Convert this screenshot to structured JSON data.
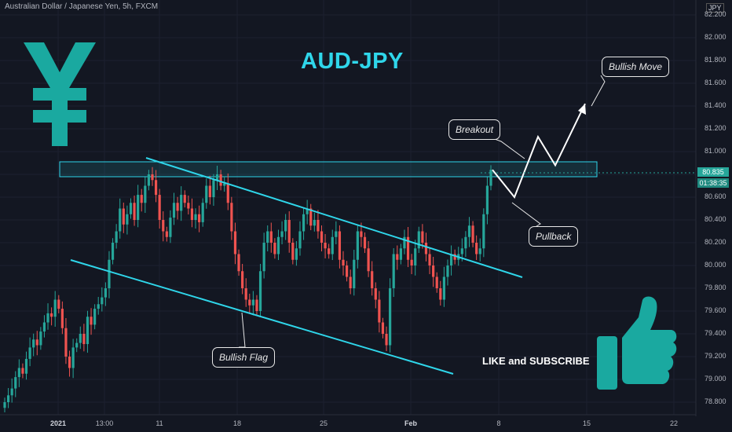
{
  "header": {
    "symbol_line": "Australian Dollar / Japanese Yen, 5h, FXCM"
  },
  "title": "AUD-JPY",
  "currency_badge": "JPY",
  "annotations": {
    "breakout": "Breakout",
    "bullish_move": "Bullish Move",
    "pullback": "Pullback",
    "bullish_flag": "Bullish Flag",
    "subscribe": "LIKE and SUBSCRIBE"
  },
  "last_price": "80.835",
  "countdown": "01:38:35",
  "colors": {
    "background": "#131722",
    "up": "#26a69a",
    "down": "#ef5350",
    "accent": "#2fd6ea",
    "yen": "#1aa9a0"
  },
  "icons": [
    "yen-symbol-icon",
    "thumbs-up-icon"
  ],
  "chart_data": {
    "type": "candlestick",
    "symbol": "AUDJPY",
    "timeframe": "5h",
    "y_axis": {
      "range": [
        78.7,
        82.3
      ],
      "ticks": [
        "82.200",
        "82.000",
        "81.800",
        "81.600",
        "81.400",
        "81.200",
        "81.000",
        "80.800",
        "80.600",
        "80.400",
        "80.200",
        "80.000",
        "79.800",
        "79.600",
        "79.400",
        "79.200",
        "79.000",
        "78.800"
      ]
    },
    "x_axis": {
      "ticks": [
        "2021",
        "13:00",
        "11",
        "18",
        "25",
        "Feb",
        "8",
        "15",
        "22"
      ],
      "bold_ticks": [
        "2021",
        "Feb"
      ]
    },
    "resistance_zone": [
      80.78,
      80.93
    ],
    "channel_upper": [
      {
        "x": 186,
        "y": 80.98
      },
      {
        "x": 665,
        "y": 79.97
      }
    ],
    "channel_lower": [
      {
        "x": 90,
        "y": 80.06
      },
      {
        "x": 577,
        "y": 79.07
      }
    ],
    "projection_path": [
      {
        "x": 627,
        "y": 80.84
      },
      {
        "x": 655,
        "y": 80.6
      },
      {
        "x": 685,
        "y": 81.13
      },
      {
        "x": 707,
        "y": 80.88
      },
      {
        "x": 745,
        "y": 81.42
      }
    ],
    "closes": [
      78.8,
      78.86,
      78.92,
      79.02,
      79.1,
      79.05,
      79.18,
      79.28,
      79.35,
      79.3,
      79.42,
      79.5,
      79.58,
      79.55,
      79.7,
      79.62,
      79.45,
      79.2,
      79.1,
      79.28,
      79.32,
      79.4,
      79.31,
      79.55,
      79.48,
      79.62,
      79.66,
      79.72,
      79.8,
      80.05,
      80.2,
      80.3,
      80.5,
      80.36,
      80.45,
      80.55,
      80.4,
      80.62,
      80.55,
      80.7,
      80.8,
      80.75,
      80.62,
      80.4,
      80.3,
      80.25,
      80.42,
      80.55,
      80.48,
      80.62,
      80.55,
      80.5,
      80.4,
      80.45,
      80.38,
      80.55,
      80.7,
      80.6,
      80.75,
      80.8,
      80.7,
      80.72,
      80.55,
      80.3,
      80.1,
      79.95,
      79.8,
      79.7,
      79.65,
      79.7,
      79.6,
      79.95,
      80.2,
      80.3,
      80.2,
      80.1,
      80.25,
      80.3,
      80.4,
      80.2,
      80.05,
      80.15,
      80.3,
      80.45,
      80.5,
      80.35,
      80.4,
      80.3,
      80.2,
      80.15,
      80.1,
      80.25,
      80.3,
      80.05,
      80.0,
      79.9,
      79.8,
      80.05,
      80.3,
      80.25,
      80.15,
      79.95,
      79.8,
      79.7,
      79.5,
      79.4,
      79.3,
      79.8,
      80.1,
      80.05,
      80.15,
      80.25,
      80.05,
      80.0,
      80.15,
      80.3,
      80.2,
      80.1,
      80.0,
      79.9,
      79.8,
      79.7,
      79.9,
      80.0,
      80.1,
      80.05,
      80.1,
      80.15,
      80.25,
      80.35,
      80.2,
      80.1,
      80.15,
      80.45,
      80.7,
      80.84
    ]
  }
}
